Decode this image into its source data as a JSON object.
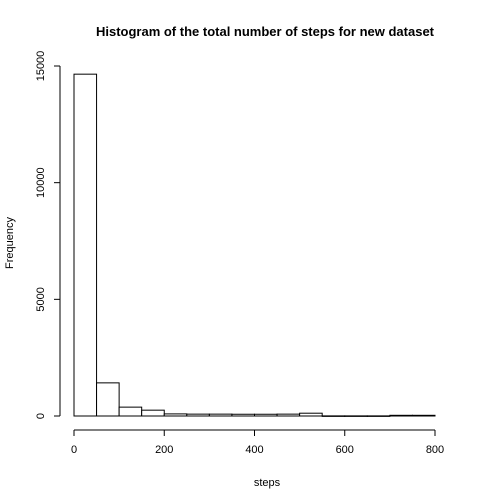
{
  "chart_data": {
    "type": "histogram",
    "title": "Histogram of the total number of steps for new dataset",
    "xlabel": "steps",
    "ylabel": "Frequency",
    "bin_width": 50,
    "bins": [
      {
        "start": 0,
        "end": 50,
        "count": 14650
      },
      {
        "start": 50,
        "end": 100,
        "count": 1420
      },
      {
        "start": 100,
        "end": 150,
        "count": 380
      },
      {
        "start": 150,
        "end": 200,
        "count": 250
      },
      {
        "start": 200,
        "end": 250,
        "count": 90
      },
      {
        "start": 250,
        "end": 300,
        "count": 80
      },
      {
        "start": 300,
        "end": 350,
        "count": 80
      },
      {
        "start": 350,
        "end": 400,
        "count": 75
      },
      {
        "start": 400,
        "end": 450,
        "count": 75
      },
      {
        "start": 450,
        "end": 500,
        "count": 80
      },
      {
        "start": 500,
        "end": 550,
        "count": 120
      },
      {
        "start": 550,
        "end": 600,
        "count": 5
      },
      {
        "start": 600,
        "end": 650,
        "count": 5
      },
      {
        "start": 650,
        "end": 700,
        "count": 5
      },
      {
        "start": 700,
        "end": 750,
        "count": 30
      },
      {
        "start": 750,
        "end": 800,
        "count": 30
      }
    ],
    "xlim": [
      0,
      850
    ],
    "ylim": [
      0,
      15000
    ],
    "xticks": [
      "0",
      "200",
      "400",
      "600",
      "800"
    ],
    "yticks": [
      "0",
      "5000",
      "10000",
      "15000"
    ],
    "grid": false,
    "colors": {
      "bar_fill": "#ffffff",
      "bar_stroke": "#000000"
    }
  }
}
